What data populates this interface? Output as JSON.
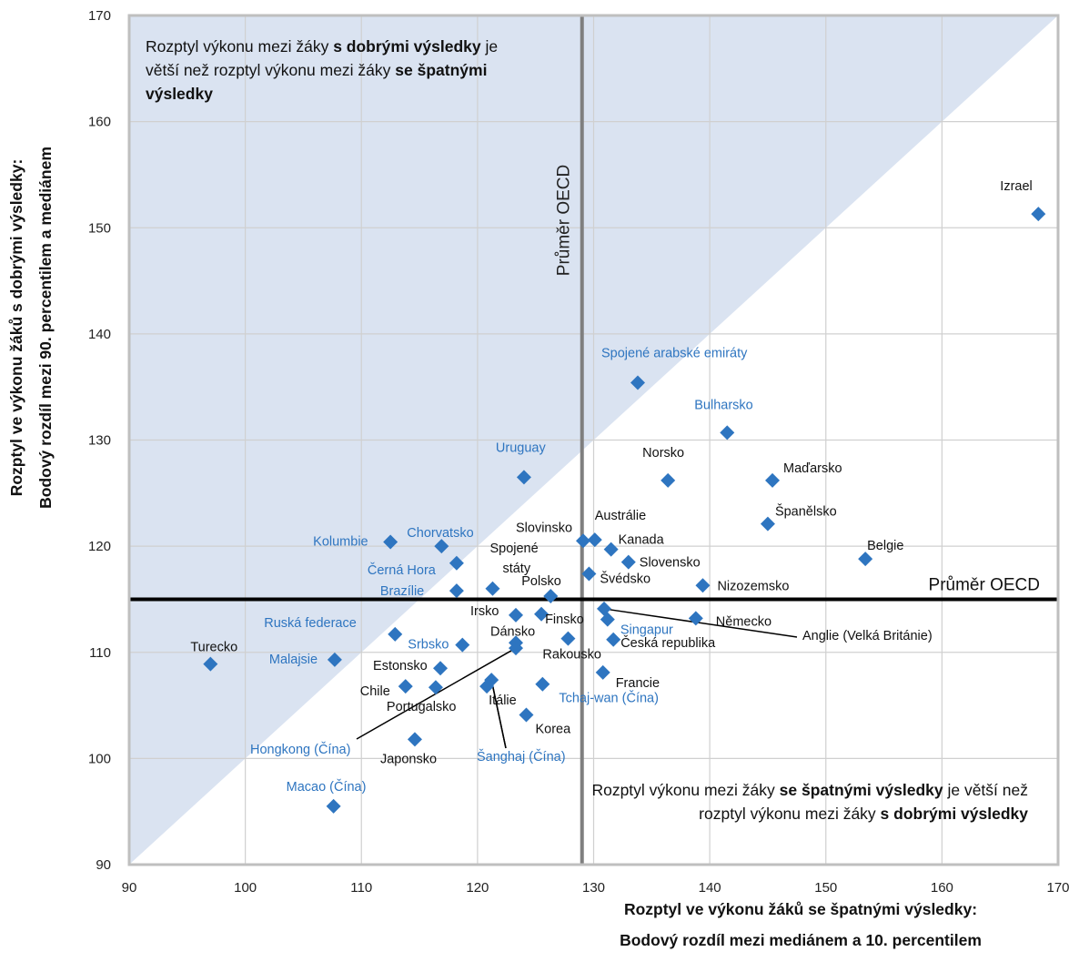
{
  "chart_data": {
    "type": "scatter",
    "xlabel": [
      "Rozptyl ve výkonu žáků se špatnými výsledky:",
      "Bodový rozdíl mezi mediánem a 10. percentilem"
    ],
    "ylabel": [
      "Rozptyl ve výkonu žáků s dobrými výsledky:",
      "Bodový rozdíl mezi 90. percentilem a mediánem"
    ],
    "xlim": [
      90,
      170
    ],
    "ylim": [
      90,
      170
    ],
    "xticks": [
      90,
      100,
      110,
      120,
      130,
      140,
      150,
      160,
      170
    ],
    "yticks": [
      90,
      100,
      110,
      120,
      130,
      140,
      150,
      160,
      170
    ],
    "grid": true,
    "oecd_mean_x": 129,
    "oecd_mean_y": 115,
    "oecd_mean_label_vertical": "Průměr OECD",
    "oecd_mean_label_horizontal": "Průměr OECD",
    "colors": {
      "marker": "#2e75c0",
      "partner_label": "#2e75c0",
      "oecd_label": "#111111",
      "shade": "#dae3f1",
      "grid": "#d0d0d0",
      "mean_x_line": "#7f7f7f",
      "mean_y_line": "#000000"
    },
    "points": [
      {
        "name": "Izrael",
        "x": 168.3,
        "y": 151.3,
        "group": "oecd"
      },
      {
        "name": "Spojené arabské emiráty",
        "x": 133.8,
        "y": 135.4,
        "group": "partner"
      },
      {
        "name": "Bulharsko",
        "x": 141.5,
        "y": 130.7,
        "group": "partner"
      },
      {
        "name": "Norsko",
        "x": 136.4,
        "y": 126.2,
        "group": "oecd"
      },
      {
        "name": "Maďarsko",
        "x": 145.4,
        "y": 126.2,
        "group": "oecd"
      },
      {
        "name": "Uruguay",
        "x": 124.0,
        "y": 126.5,
        "group": "partner"
      },
      {
        "name": "Španělsko",
        "x": 145.0,
        "y": 122.1,
        "group": "oecd"
      },
      {
        "name": "Slovinsko",
        "x": 129.1,
        "y": 120.5,
        "group": "oecd"
      },
      {
        "name": "Austrálie",
        "x": 130.1,
        "y": 120.6,
        "group": "oecd"
      },
      {
        "name": "Kanada",
        "x": 131.5,
        "y": 119.7,
        "group": "oecd"
      },
      {
        "name": "Slovensko",
        "x": 133.0,
        "y": 118.5,
        "group": "oecd"
      },
      {
        "name": "Belgie",
        "x": 153.4,
        "y": 118.8,
        "group": "oecd"
      },
      {
        "name": "Kolumbie",
        "x": 112.5,
        "y": 120.4,
        "group": "partner"
      },
      {
        "name": "Chorvatsko",
        "x": 116.9,
        "y": 120.0,
        "group": "partner"
      },
      {
        "name": "Černá Hora",
        "x": 118.2,
        "y": 118.4,
        "group": "partner"
      },
      {
        "name": "Spojené státy",
        "x": 121.3,
        "y": 116.0,
        "group": "oecd"
      },
      {
        "name": "Švédsko",
        "x": 129.6,
        "y": 117.4,
        "group": "oecd"
      },
      {
        "name": "Nizozemsko",
        "x": 139.4,
        "y": 116.3,
        "group": "oecd"
      },
      {
        "name": "Brazílie",
        "x": 118.2,
        "y": 115.8,
        "group": "partner"
      },
      {
        "name": "Polsko",
        "x": 126.3,
        "y": 115.3,
        "group": "oecd"
      },
      {
        "name": "Irsko",
        "x": 123.3,
        "y": 113.5,
        "group": "oecd"
      },
      {
        "name": "Finsko",
        "x": 125.5,
        "y": 113.6,
        "group": "oecd"
      },
      {
        "name": "Anglie (Velká Británie)",
        "x": 130.9,
        "y": 114.1,
        "group": "oecd"
      },
      {
        "name": "Singapur",
        "x": 131.2,
        "y": 113.1,
        "group": "partner"
      },
      {
        "name": "Německo",
        "x": 138.8,
        "y": 113.2,
        "group": "oecd"
      },
      {
        "name": "Ruská federace",
        "x": 112.9,
        "y": 111.7,
        "group": "partner"
      },
      {
        "name": "Dánsko",
        "x": 123.3,
        "y": 110.9,
        "group": "oecd"
      },
      {
        "name": "Rakousko",
        "x": 127.8,
        "y": 111.3,
        "group": "oecd"
      },
      {
        "name": "Česká republika",
        "x": 131.7,
        "y": 111.2,
        "group": "oecd"
      },
      {
        "name": "Srbsko",
        "x": 118.7,
        "y": 110.7,
        "group": "partner"
      },
      {
        "name": "Hongkong (Čína)",
        "x": 123.3,
        "y": 110.4,
        "group": "partner"
      },
      {
        "name": "Turecko",
        "x": 97.0,
        "y": 108.9,
        "group": "oecd"
      },
      {
        "name": "Malajsie",
        "x": 107.7,
        "y": 109.3,
        "group": "partner"
      },
      {
        "name": "Estonsko",
        "x": 116.8,
        "y": 108.5,
        "group": "oecd"
      },
      {
        "name": "Francie",
        "x": 130.8,
        "y": 108.1,
        "group": "oecd"
      },
      {
        "name": "Chile",
        "x": 113.8,
        "y": 106.8,
        "group": "oecd"
      },
      {
        "name": "Portugalsko",
        "x": 116.4,
        "y": 106.7,
        "group": "oecd"
      },
      {
        "name": "Itálie",
        "x": 120.8,
        "y": 106.8,
        "group": "oecd"
      },
      {
        "name": "Šanghaj (Čína)",
        "x": 121.2,
        "y": 107.4,
        "group": "partner"
      },
      {
        "name": "Tchaj-wan (Čína)",
        "x": 125.6,
        "y": 107.0,
        "group": "partner"
      },
      {
        "name": "Korea",
        "x": 124.2,
        "y": 104.1,
        "group": "oecd"
      },
      {
        "name": "Japonsko",
        "x": 114.6,
        "y": 101.8,
        "group": "oecd"
      },
      {
        "name": "Macao (Čína)",
        "x": 107.6,
        "y": 95.5,
        "group": "partner"
      }
    ]
  },
  "annotations": {
    "upper_left": [
      {
        "text": "Rozptyl výkonu mezi žáky ",
        "bold": false
      },
      {
        "text": "s dobrými výsledky",
        "bold": true
      },
      {
        "text": " je větší než rozptyl výkonu mezi žáky ",
        "bold": false
      },
      {
        "text": "se špatnými výsledky",
        "bold": true
      }
    ],
    "lower_right": [
      {
        "text": "Rozptyl výkonu mezi žáky ",
        "bold": false
      },
      {
        "text": "se špatnými výsledky",
        "bold": true
      },
      {
        "text": " je větší než rozptyl výkonu mezi žáky ",
        "bold": false
      },
      {
        "text": "s dobrými výsledky",
        "bold": true
      }
    ]
  }
}
